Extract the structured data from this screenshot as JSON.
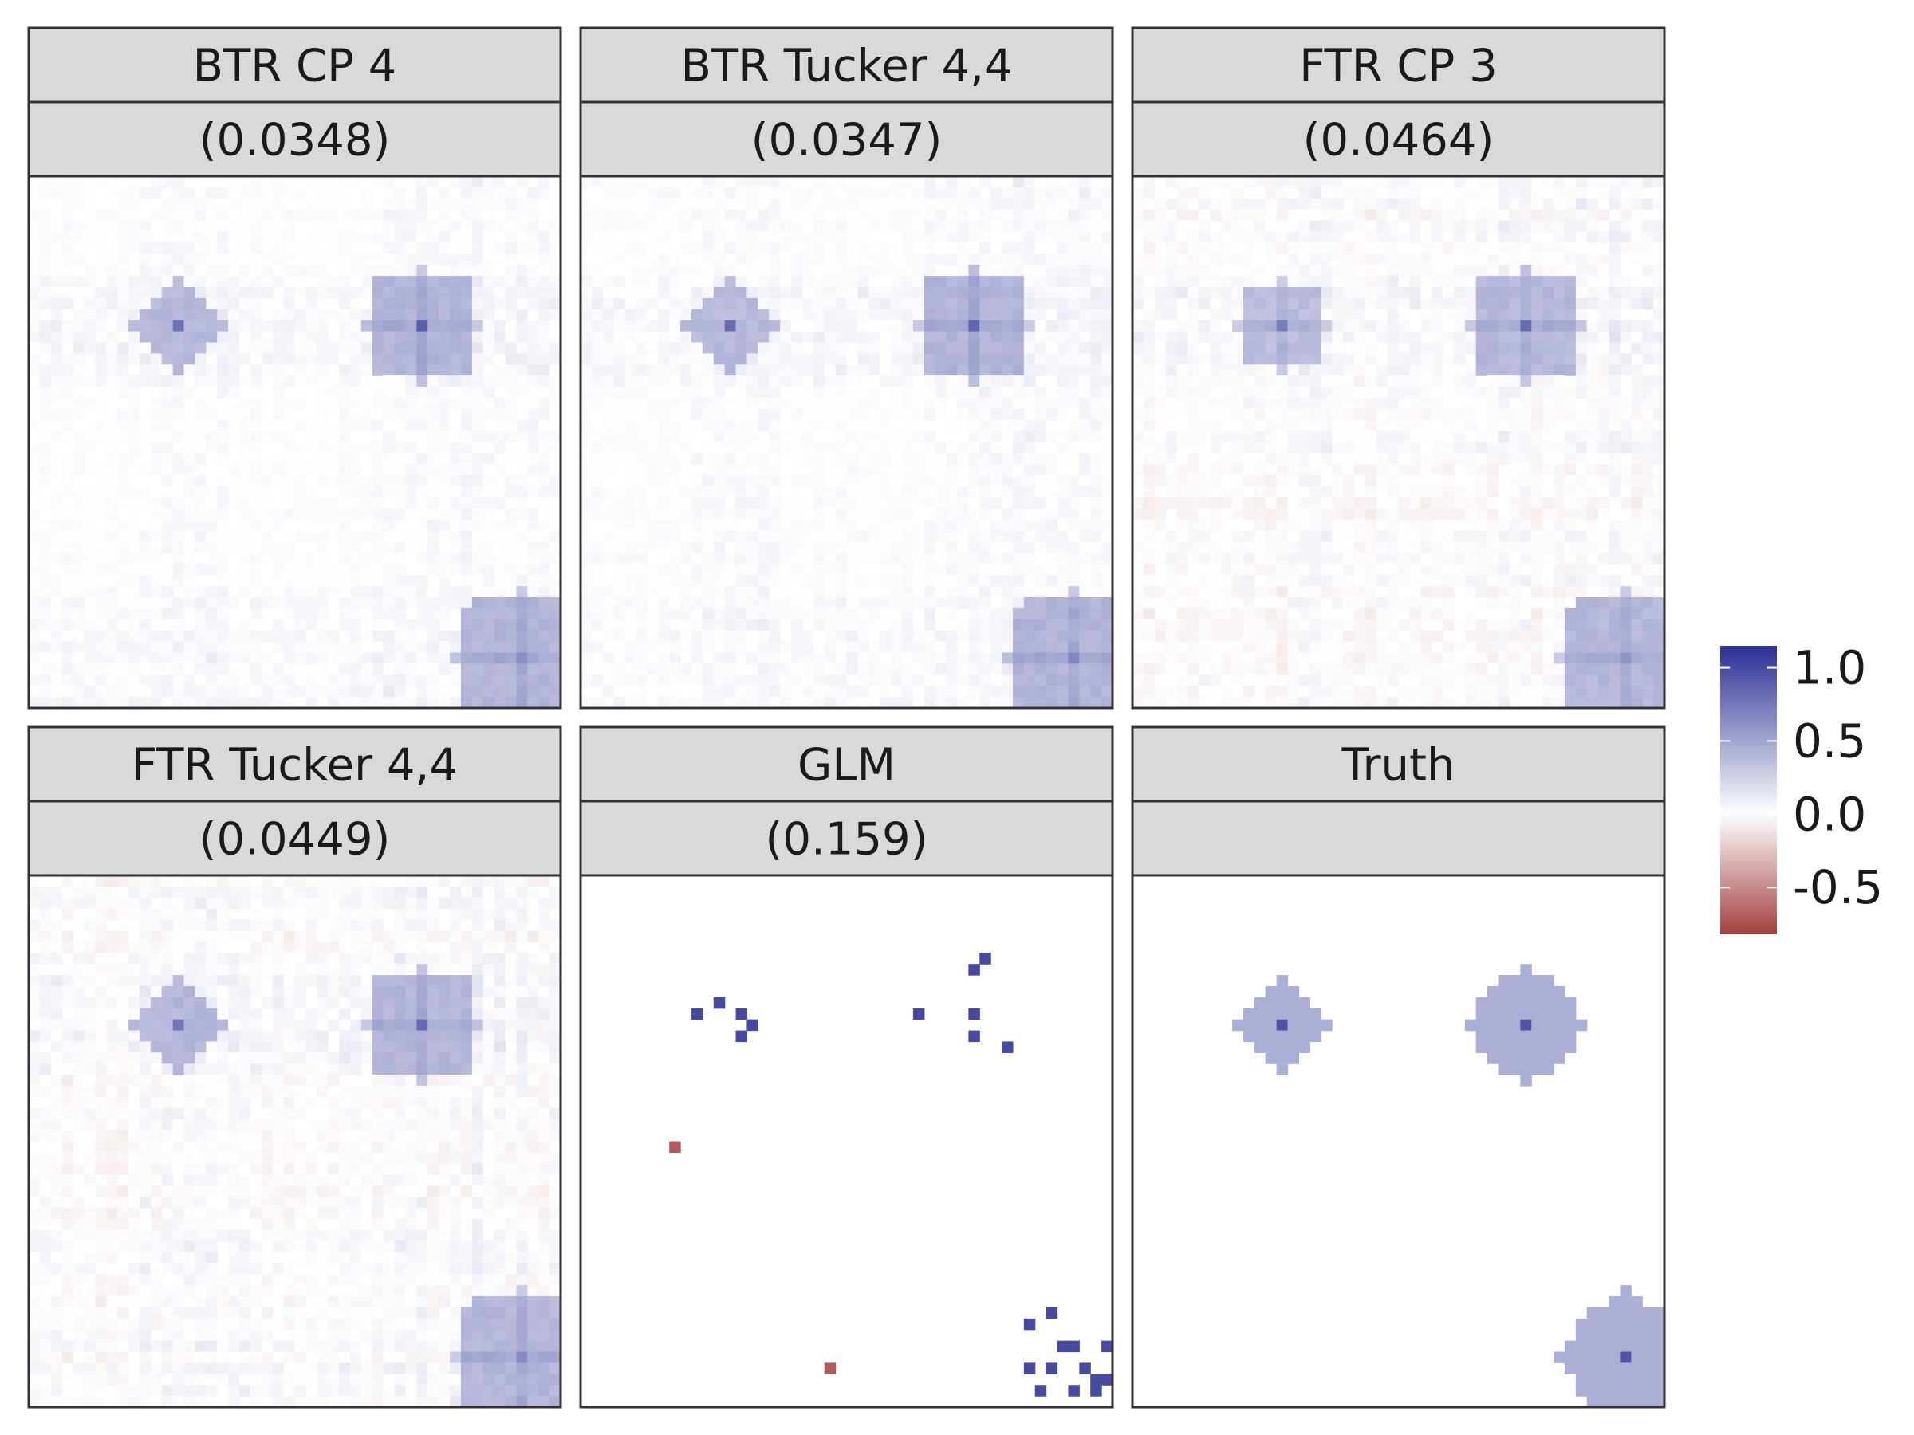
{
  "chart_data": {
    "type": "heatmap",
    "grid_size": [
      48,
      48
    ],
    "panels": [
      {
        "title": "BTR CP 4",
        "subtitle": "(0.0348)",
        "model": "smooth",
        "noise": 0.03,
        "negative_noise": false,
        "blob_strength": 0.92,
        "spots": [
          {
            "row": 13,
            "col": 13,
            "shape": "plus",
            "radius": 3.5,
            "arm": 4.5,
            "level": 0.42,
            "peak": 0.85
          },
          {
            "row": 13,
            "col": 35,
            "shape": "square",
            "radius": 4.5,
            "arm": 5.2,
            "level": 0.45,
            "peak": 0.95
          },
          {
            "row": 43,
            "col": 44,
            "shape": "square",
            "radius": 5,
            "arm": 6,
            "level": 0.45,
            "peak": 0.7
          }
        ]
      },
      {
        "title": "BTR Tucker 4,4",
        "subtitle": "(0.0347)",
        "model": "smooth",
        "noise": 0.03,
        "negative_noise": false,
        "blob_strength": 0.92,
        "spots": [
          {
            "row": 13,
            "col": 13,
            "shape": "plus",
            "radius": 3.5,
            "arm": 4.5,
            "level": 0.42,
            "peak": 0.85
          },
          {
            "row": 13,
            "col": 35,
            "shape": "square",
            "radius": 4.5,
            "arm": 5.2,
            "level": 0.45,
            "peak": 0.95
          },
          {
            "row": 43,
            "col": 44,
            "shape": "square",
            "radius": 5,
            "arm": 6,
            "level": 0.45,
            "peak": 0.7
          }
        ]
      },
      {
        "title": "FTR CP 3",
        "subtitle": "(0.0464)",
        "model": "smooth",
        "noise": 0.06,
        "negative_noise": true,
        "blob_strength": 0.88,
        "spots": [
          {
            "row": 13,
            "col": 13,
            "shape": "square",
            "radius": 3.5,
            "arm": 4.5,
            "level": 0.42,
            "peak": 0.8
          },
          {
            "row": 13,
            "col": 35,
            "shape": "square",
            "radius": 4.5,
            "arm": 5.2,
            "level": 0.45,
            "peak": 0.9
          },
          {
            "row": 43,
            "col": 44,
            "shape": "square",
            "radius": 5,
            "arm": 6,
            "level": 0.45,
            "peak": 0.7
          }
        ]
      },
      {
        "title": "FTR Tucker 4,4",
        "subtitle": "(0.0449)",
        "model": "smooth",
        "noise": 0.06,
        "negative_noise": true,
        "blob_strength": 0.9,
        "spots": [
          {
            "row": 13,
            "col": 13,
            "shape": "plus",
            "radius": 3.5,
            "arm": 4.5,
            "level": 0.44,
            "peak": 0.85
          },
          {
            "row": 13,
            "col": 35,
            "shape": "square",
            "radius": 4.5,
            "arm": 5.2,
            "level": 0.45,
            "peak": 0.9
          },
          {
            "row": 43,
            "col": 44,
            "shape": "square",
            "radius": 5,
            "arm": 6,
            "level": 0.45,
            "peak": 0.75
          }
        ]
      },
      {
        "title": "GLM",
        "subtitle": "(0.159)",
        "model": "sparse",
        "cells": [
          {
            "row": 8,
            "col": 35,
            "value": 1.0
          },
          {
            "row": 7,
            "col": 36,
            "value": 1.0
          },
          {
            "row": 12,
            "col": 10,
            "value": 1.0
          },
          {
            "row": 11,
            "col": 12,
            "value": 1.0
          },
          {
            "row": 12,
            "col": 14,
            "value": 1.0
          },
          {
            "row": 13,
            "col": 15,
            "value": 1.0
          },
          {
            "row": 14,
            "col": 14,
            "value": 1.0
          },
          {
            "row": 12,
            "col": 30,
            "value": 1.0
          },
          {
            "row": 12,
            "col": 35,
            "value": 1.0
          },
          {
            "row": 14,
            "col": 35,
            "value": 1.0
          },
          {
            "row": 15,
            "col": 38,
            "value": 1.0
          },
          {
            "row": 24,
            "col": 8,
            "value": -0.7
          },
          {
            "row": 44,
            "col": 22,
            "value": -0.7
          },
          {
            "row": 40,
            "col": 40,
            "value": 1.0
          },
          {
            "row": 39,
            "col": 42,
            "value": 1.0
          },
          {
            "row": 42,
            "col": 43,
            "value": 1.0
          },
          {
            "row": 42,
            "col": 44,
            "value": 1.0
          },
          {
            "row": 42,
            "col": 47,
            "value": 1.0
          },
          {
            "row": 44,
            "col": 40,
            "value": 1.0
          },
          {
            "row": 44,
            "col": 42,
            "value": 1.0
          },
          {
            "row": 44,
            "col": 45,
            "value": 1.0
          },
          {
            "row": 46,
            "col": 41,
            "value": 1.0
          },
          {
            "row": 46,
            "col": 44,
            "value": 1.0
          },
          {
            "row": 45,
            "col": 46,
            "value": 1.0
          },
          {
            "row": 45,
            "col": 47,
            "value": 1.0
          },
          {
            "row": 46,
            "col": 46,
            "value": 1.0
          }
        ]
      },
      {
        "title": "Truth",
        "subtitle": "",
        "model": "truth",
        "spots": [
          {
            "row": 13,
            "col": 13,
            "radius": 3.6,
            "arm": 4.5,
            "level": 0.45,
            "peak": 0.95
          },
          {
            "row": 13,
            "col": 35,
            "radius": 4.6,
            "arm": 5.5,
            "level": 0.45,
            "peak": 0.95
          },
          {
            "row": 43,
            "col": 44,
            "radius": 5.3,
            "arm": 6.5,
            "level": 0.45,
            "peak": 0.95
          }
        ]
      }
    ],
    "legend": {
      "breaks": [
        1.0,
        0.5,
        0.0,
        -0.5
      ],
      "labels": [
        "1.0",
        "0.5",
        "0.0",
        "-0.5"
      ],
      "limits": [
        -0.82,
        1.15
      ],
      "placement": "right"
    },
    "colors": {
      "low": "#a2403f",
      "mid": "#ffffff",
      "high": "#2b2f93",
      "strip_fill": "#d9d9d9",
      "strip_border": "#333333",
      "panel_border": "#333333"
    }
  }
}
